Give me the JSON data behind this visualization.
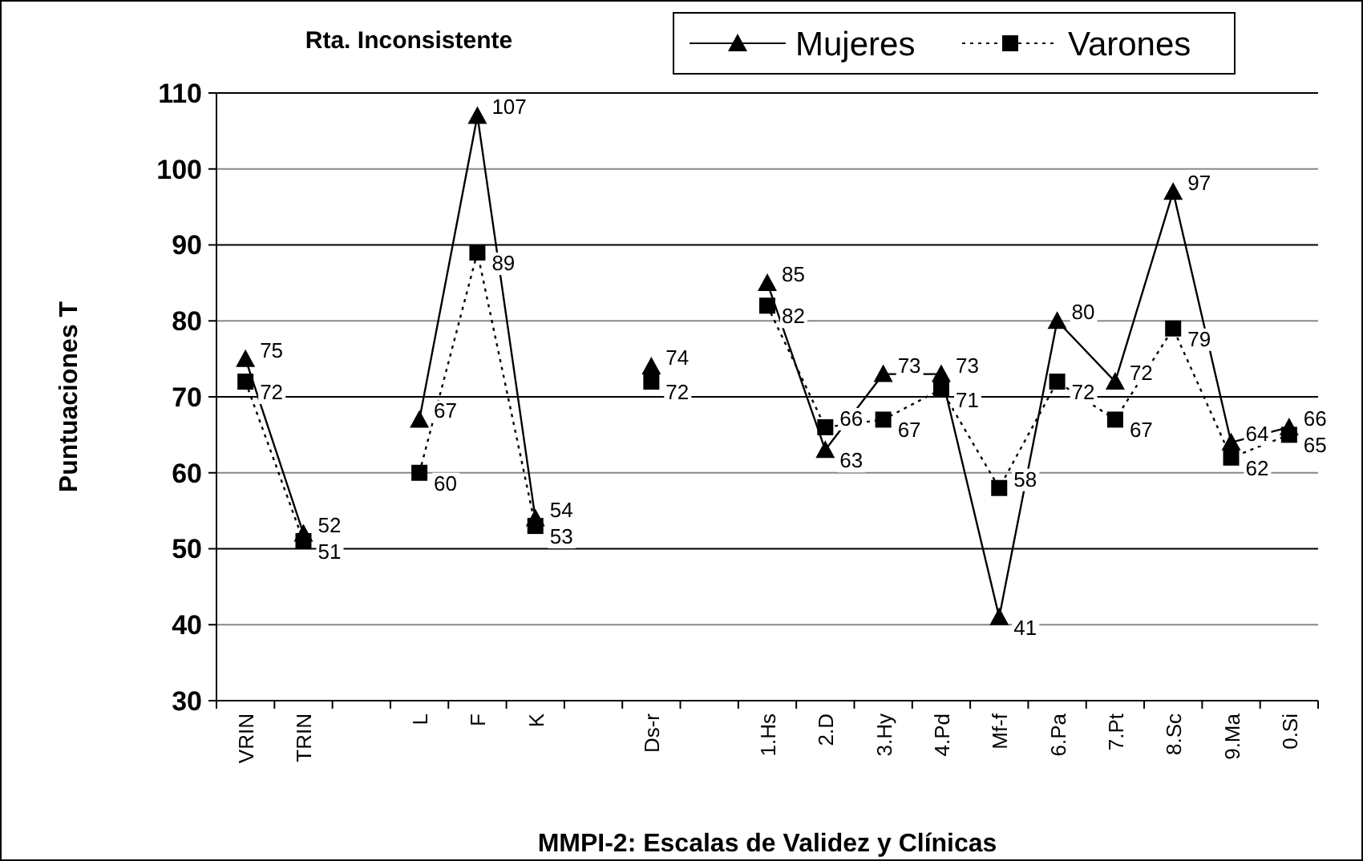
{
  "chart_data": {
    "type": "line",
    "title": "Rta. Inconsistente",
    "xlabel": "MMPI-2: Escalas de Validez y Clínicas",
    "ylabel": "Puntuaciones T",
    "categories": [
      "VRIN",
      "TRIN",
      null,
      "L",
      "F",
      "K",
      null,
      "Ds-r",
      null,
      "1.Hs",
      "2.D",
      "3.Hy",
      "4.Pd",
      "Mf-f",
      "6.Pa",
      "7.Pt",
      "8.Sc",
      "9.Ma",
      "0.Si"
    ],
    "series": [
      {
        "name": "Mujeres",
        "color": "#000000",
        "marker": "triangle",
        "line_style": "solid",
        "values": [
          75,
          52,
          null,
          67,
          107,
          54,
          null,
          74,
          null,
          85,
          63,
          73,
          73,
          41,
          80,
          72,
          97,
          64,
          66
        ]
      },
      {
        "name": "Varones",
        "color": "#000000",
        "marker": "square",
        "line_style": "dotted",
        "values": [
          72,
          51,
          null,
          60,
          89,
          53,
          null,
          72,
          null,
          82,
          66,
          67,
          71,
          58,
          72,
          67,
          79,
          62,
          65
        ]
      }
    ],
    "ylim": [
      30,
      110
    ],
    "yticks": [
      30,
      40,
      50,
      60,
      70,
      80,
      90,
      100,
      110
    ],
    "grid": "y",
    "legend": "top right",
    "data_labels": true
  }
}
